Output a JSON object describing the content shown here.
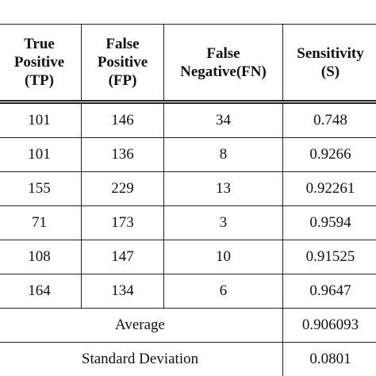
{
  "table": {
    "header": [
      "True Positive (TP)",
      "False Positive (FP)",
      "False Negative(FN)",
      "Sensitivity (S)"
    ],
    "rows": [
      [
        101,
        146,
        34,
        0.748
      ],
      [
        101,
        136,
        8,
        0.9266
      ],
      [
        155,
        229,
        13,
        0.92261
      ],
      [
        71,
        173,
        3,
        0.9594
      ],
      [
        108,
        147,
        10,
        0.91525
      ],
      [
        164,
        134,
        6,
        0.9647
      ]
    ],
    "summary": [
      {
        "label": "Average",
        "value": 0.906093
      },
      {
        "label": "Standard Deviation",
        "value": 0.0801
      }
    ]
  }
}
